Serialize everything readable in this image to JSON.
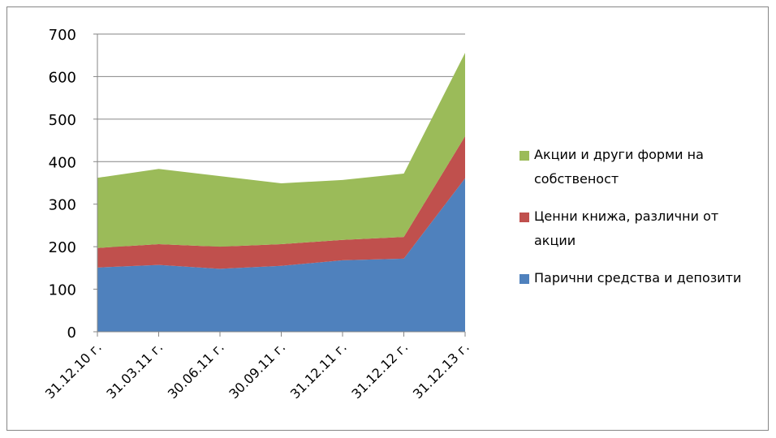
{
  "chart_data": {
    "type": "area",
    "stacked": true,
    "categories": [
      "31.12.10 г.",
      "31.03.11 г.",
      "30.06.11 г.",
      "30.09.11 г.",
      "31.12.11 г.",
      "31.12.12 г.",
      "31.12.13 г."
    ],
    "series": [
      {
        "name": "Парични средства и депозити",
        "color": "#4f81bd",
        "values": [
          151,
          157,
          148,
          155,
          168,
          172,
          361
        ]
      },
      {
        "name": "Ценни книжа, различни от акции",
        "color": "#c0504d",
        "values": [
          46,
          49,
          52,
          51,
          48,
          51,
          99
        ]
      },
      {
        "name": "Акции и други форми на собственост",
        "color": "#9bbb59",
        "values": [
          165,
          177,
          166,
          143,
          141,
          149,
          196
        ]
      }
    ],
    "ylim": [
      0,
      700
    ],
    "yticks": [
      0,
      100,
      200,
      300,
      400,
      500,
      600,
      700
    ],
    "grid": true,
    "legend": "right"
  }
}
